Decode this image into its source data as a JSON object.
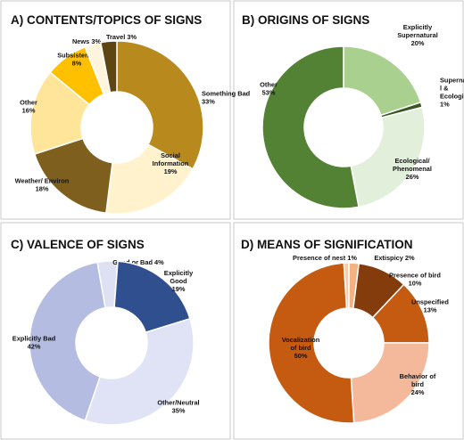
{
  "chart_data": [
    {
      "type": "pie",
      "title": "A) CONTENTS/TOPICS OF SIGNS",
      "slices": [
        {
          "label": [
            "Something Bad",
            "33%"
          ],
          "value": 33,
          "color": "#b8891c"
        },
        {
          "label": [
            "Social",
            "Information",
            "19%"
          ],
          "value": 19,
          "color": "#fff2cc"
        },
        {
          "label": [
            "Weather/ Environ",
            "18%"
          ],
          "value": 18,
          "color": "#7f5f1e"
        },
        {
          "label": [
            "Other",
            "16%"
          ],
          "value": 16,
          "color": "#ffe59a"
        },
        {
          "label": [
            "Subsistence",
            "8%"
          ],
          "value": 8,
          "color": "#ffc000"
        },
        {
          "label": [
            "News 3%"
          ],
          "value": 3,
          "color": "#fff5dd"
        },
        {
          "label": [
            "Travel  3%"
          ],
          "value": 3,
          "color": "#5e4514"
        }
      ]
    },
    {
      "type": "pie",
      "title": "B) ORIGINS OF SIGNS",
      "slices": [
        {
          "label": [
            "Explicitly",
            "Supernatural",
            "20%"
          ],
          "value": 20,
          "color": "#a9d08e"
        },
        {
          "label": [
            "Supernatura",
            "l &",
            "Ecological",
            "1%"
          ],
          "value": 1,
          "color": "#375623"
        },
        {
          "label": [
            "Ecological/",
            "Phenomenal",
            "26%"
          ],
          "value": 26,
          "color": "#e2efda"
        },
        {
          "label": [
            "Other",
            "53%"
          ],
          "value": 53,
          "color": "#548235"
        }
      ]
    },
    {
      "type": "pie",
      "title": "C) VALENCE OF SIGNS",
      "slices": [
        {
          "label": [
            "Good or Bad 4%"
          ],
          "value": 4,
          "color": "#dde1f1"
        },
        {
          "label": [
            "Explicitly",
            "Good",
            "19%"
          ],
          "value": 19,
          "color": "#2f4f8f"
        },
        {
          "label": [
            "Other/Neutral",
            "35%"
          ],
          "value": 35,
          "color": "#dfe3f5"
        },
        {
          "label": [
            "Explicitly Bad",
            "42%"
          ],
          "value": 42,
          "color": "#b4bde1"
        }
      ]
    },
    {
      "type": "pie",
      "title": "D) MEANS OF SIGNIFICATION",
      "slices": [
        {
          "label": [
            "Extispicy  2%"
          ],
          "value": 2,
          "color": "#f4b183"
        },
        {
          "label": [
            "Presence of bird",
            "10%"
          ],
          "value": 10,
          "color": "#843c0c"
        },
        {
          "label": [
            "Unspecified",
            "13%"
          ],
          "value": 13,
          "color": "#c55a11"
        },
        {
          "label": [
            "Behavior of",
            "bird",
            "24%"
          ],
          "value": 24,
          "color": "#f4b89a"
        },
        {
          "label": [
            "Vocalization",
            "of bird",
            "50%"
          ],
          "value": 50,
          "color": "#c55a11"
        },
        {
          "label": [
            "Presence of nest  1%"
          ],
          "value": 1,
          "color": "#f8cbad"
        }
      ]
    }
  ]
}
